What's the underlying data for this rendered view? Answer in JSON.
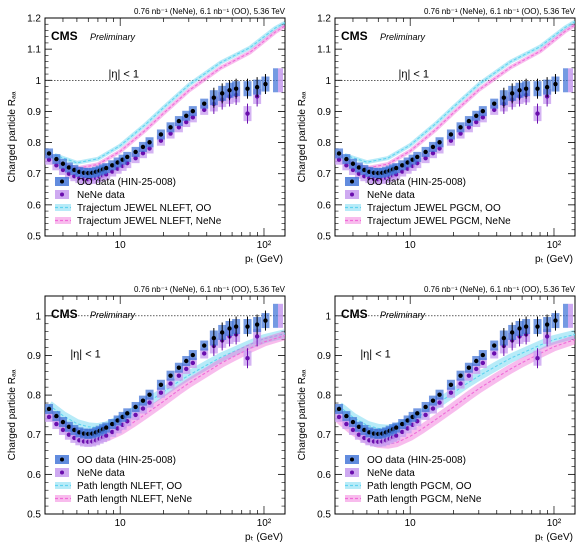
{
  "figure": {
    "panels": [
      {
        "lumi": "0.76 nb⁻¹ (NeNe), 6.1 nb⁻¹ (OO), 5.36 TeV",
        "cms": "CMS",
        "preliminary": "Preliminary",
        "eta": "|η| < 1",
        "xlabel": "pₜ (GeV)",
        "ylabel": "Charged particle Rₐₐ",
        "legend": [
          "OO data (HIN-25-008)",
          "NeNe data",
          "Trajectum JEWEL NLEFT, OO",
          "Trajectum JEWEL NLEFT, NeNe"
        ]
      },
      {
        "lumi": "0.76 nb⁻¹ (NeNe), 6.1 nb⁻¹ (OO), 5.36 TeV",
        "cms": "CMS",
        "preliminary": "Preliminary",
        "eta": "|η| < 1",
        "xlabel": "pₜ (GeV)",
        "ylabel": "Charged particle Rₐₐ",
        "legend": [
          "OO data (HIN-25-008)",
          "NeNe data",
          "Trajectum JEWEL PGCM, OO",
          "Trajectum JEWEL PGCM, NeNe"
        ]
      },
      {
        "lumi": "0.76 nb⁻¹ (NeNe), 6.1 nb⁻¹ (OO), 5.36 TeV",
        "cms": "CMS",
        "preliminary": "Preliminary",
        "eta": "|η| < 1",
        "xlabel": "pₜ (GeV)",
        "ylabel": "Charged particle Rₐₐ",
        "legend": [
          "OO data (HIN-25-008)",
          "NeNe data",
          "Path length NLEFT, OO",
          "Path length NLEFT, NeNe"
        ]
      },
      {
        "lumi": "0.76 nb⁻¹ (NeNe), 6.1 nb⁻¹ (OO), 5.36 TeV",
        "cms": "CMS",
        "preliminary": "Preliminary",
        "eta": "|η| < 1",
        "xlabel": "pₜ (GeV)",
        "ylabel": "Charged particle Rₐₐ",
        "legend": [
          "OO data (HIN-25-008)",
          "NeNe data",
          "Path length PGCM, OO",
          "Path length PGCM, NeNe"
        ]
      }
    ]
  },
  "colors": {
    "oo_data": "#000000",
    "oo_box": "#3b6fd6",
    "nene_data": "#6a0dad",
    "nene_box": "#c9a0f0",
    "model_oo": "#5fd3f0",
    "model_nene": "#f06ad8"
  },
  "chart_data": [
    {
      "type": "scatter",
      "title": "",
      "xlabel": "pₜ (GeV)",
      "ylabel": "Charged particle Rₐₐ",
      "xscale": "log",
      "xlim": [
        3,
        140
      ],
      "ylim": [
        0.5,
        1.2
      ],
      "x_ticks": [
        10,
        100
      ],
      "x_tick_labels": [
        "10",
        "10²"
      ],
      "y_ticks": [
        0.5,
        0.6,
        0.7,
        0.8,
        0.9,
        1,
        1.1,
        1.2
      ],
      "reference_line": 1.0,
      "legend_position": "bottom-left",
      "series": [
        {
          "name": "OO data (HIN-25-008)",
          "x": [
            3.2,
            3.6,
            4.0,
            4.4,
            4.8,
            5.2,
            5.6,
            6.0,
            6.4,
            6.8,
            7.2,
            7.6,
            8.0,
            8.8,
            9.6,
            10.4,
            11.2,
            12.8,
            14.4,
            16.0,
            19.2,
            22.4,
            25.6,
            28.8,
            32.0,
            38.4,
            44.8,
            51.2,
            57.6,
            64.0,
            76.8,
            89.6,
            102.4
          ],
          "y": [
            0.765,
            0.747,
            0.732,
            0.72,
            0.712,
            0.706,
            0.703,
            0.702,
            0.703,
            0.706,
            0.71,
            0.714,
            0.718,
            0.727,
            0.736,
            0.745,
            0.754,
            0.77,
            0.786,
            0.801,
            0.826,
            0.849,
            0.869,
            0.886,
            0.901,
            0.925,
            0.944,
            0.958,
            0.968,
            0.973,
            0.973,
            0.978,
            0.988
          ]
        },
        {
          "name": "NeNe data",
          "x": [
            3.2,
            3.6,
            4.0,
            4.4,
            4.8,
            5.2,
            5.6,
            6.0,
            6.4,
            6.8,
            7.2,
            7.6,
            8.0,
            8.8,
            9.6,
            10.4,
            11.2,
            12.8,
            14.4,
            16.0,
            19.2,
            22.4,
            25.6,
            28.8,
            32.0,
            38.4,
            44.8,
            51.2,
            57.6,
            64.0,
            76.8,
            89.6
          ],
          "y": [
            0.745,
            0.727,
            0.712,
            0.7,
            0.692,
            0.686,
            0.683,
            0.682,
            0.683,
            0.686,
            0.69,
            0.694,
            0.698,
            0.707,
            0.716,
            0.725,
            0.734,
            0.75,
            0.766,
            0.781,
            0.806,
            0.829,
            0.849,
            0.866,
            0.881,
            0.905,
            0.924,
            0.938,
            0.948,
            0.953,
            0.893,
            0.948
          ]
        },
        {
          "name": "Trajectum JEWEL NLEFT, OO",
          "x": [
            3.5,
            5,
            7,
            10,
            15,
            20,
            30,
            50,
            80,
            120,
            140
          ],
          "y": [
            0.76,
            0.735,
            0.748,
            0.79,
            0.858,
            0.912,
            0.985,
            1.057,
            1.105,
            1.168,
            1.185
          ]
        },
        {
          "name": "Trajectum JEWEL NLEFT, NeNe",
          "x": [
            3.5,
            5,
            7,
            10,
            15,
            20,
            30,
            50,
            80,
            120,
            140
          ],
          "y": [
            0.74,
            0.717,
            0.73,
            0.772,
            0.84,
            0.894,
            0.967,
            1.04,
            1.09,
            1.155,
            1.175
          ]
        }
      ]
    },
    {
      "type": "scatter",
      "title": "",
      "xlabel": "pₜ (GeV)",
      "ylabel": "Charged particle Rₐₐ",
      "xscale": "log",
      "xlim": [
        3,
        140
      ],
      "ylim": [
        0.5,
        1.2
      ],
      "x_ticks": [
        10,
        100
      ],
      "x_tick_labels": [
        "10",
        "10²"
      ],
      "y_ticks": [
        0.5,
        0.6,
        0.7,
        0.8,
        0.9,
        1,
        1.1,
        1.2
      ],
      "reference_line": 1.0,
      "legend_position": "bottom-left",
      "series": [
        {
          "name": "OO data (HIN-25-008)",
          "x": [
            3.2,
            3.6,
            4.0,
            4.4,
            4.8,
            5.2,
            5.6,
            6.0,
            6.4,
            6.8,
            7.2,
            7.6,
            8.0,
            8.8,
            9.6,
            10.4,
            11.2,
            12.8,
            14.4,
            16.0,
            19.2,
            22.4,
            25.6,
            28.8,
            32.0,
            38.4,
            44.8,
            51.2,
            57.6,
            64.0,
            76.8,
            89.6,
            102.4
          ],
          "y": [
            0.765,
            0.747,
            0.732,
            0.72,
            0.712,
            0.706,
            0.703,
            0.702,
            0.703,
            0.706,
            0.71,
            0.714,
            0.718,
            0.727,
            0.736,
            0.745,
            0.754,
            0.77,
            0.786,
            0.801,
            0.826,
            0.849,
            0.869,
            0.886,
            0.901,
            0.925,
            0.944,
            0.958,
            0.968,
            0.973,
            0.973,
            0.978,
            0.988
          ]
        },
        {
          "name": "NeNe data",
          "x": [
            3.2,
            3.6,
            4.0,
            4.4,
            4.8,
            5.2,
            5.6,
            6.0,
            6.4,
            6.8,
            7.2,
            7.6,
            8.0,
            8.8,
            9.6,
            10.4,
            11.2,
            12.8,
            14.4,
            16.0,
            19.2,
            22.4,
            25.6,
            28.8,
            32.0,
            38.4,
            44.8,
            51.2,
            57.6,
            64.0,
            76.8,
            89.6
          ],
          "y": [
            0.745,
            0.727,
            0.712,
            0.7,
            0.692,
            0.686,
            0.683,
            0.682,
            0.683,
            0.686,
            0.69,
            0.694,
            0.698,
            0.707,
            0.716,
            0.725,
            0.734,
            0.75,
            0.766,
            0.781,
            0.806,
            0.829,
            0.849,
            0.866,
            0.881,
            0.905,
            0.924,
            0.938,
            0.948,
            0.953,
            0.893,
            0.948
          ]
        },
        {
          "name": "Trajectum JEWEL PGCM, OO",
          "x": [
            3.5,
            5,
            7,
            10,
            15,
            20,
            30,
            50,
            80,
            120,
            140
          ],
          "y": [
            0.76,
            0.737,
            0.75,
            0.792,
            0.86,
            0.914,
            0.987,
            1.06,
            1.108,
            1.17,
            1.188
          ]
        },
        {
          "name": "Trajectum JEWEL PGCM, NeNe",
          "x": [
            3.5,
            5,
            7,
            10,
            15,
            20,
            30,
            50,
            80,
            120,
            140
          ],
          "y": [
            0.742,
            0.718,
            0.731,
            0.773,
            0.841,
            0.896,
            0.969,
            1.042,
            1.093,
            1.158,
            1.178
          ]
        }
      ]
    },
    {
      "type": "scatter",
      "title": "",
      "xlabel": "pₜ (GeV)",
      "ylabel": "Charged particle Rₐₐ",
      "xscale": "log",
      "xlim": [
        3,
        140
      ],
      "ylim": [
        0.5,
        1.05
      ],
      "x_ticks": [
        10,
        100
      ],
      "x_tick_labels": [
        "10",
        "10²"
      ],
      "y_ticks": [
        0.5,
        0.6,
        0.7,
        0.8,
        0.9,
        1
      ],
      "reference_line": 1.0,
      "legend_position": "bottom-left",
      "series": [
        {
          "name": "OO data (HIN-25-008)",
          "x": [
            3.2,
            3.6,
            4.0,
            4.4,
            4.8,
            5.2,
            5.6,
            6.0,
            6.4,
            6.8,
            7.2,
            7.6,
            8.0,
            8.8,
            9.6,
            10.4,
            11.2,
            12.8,
            14.4,
            16.0,
            19.2,
            22.4,
            25.6,
            28.8,
            32.0,
            38.4,
            44.8,
            51.2,
            57.6,
            64.0,
            76.8,
            89.6,
            102.4
          ],
          "y": [
            0.765,
            0.747,
            0.732,
            0.72,
            0.712,
            0.706,
            0.703,
            0.702,
            0.703,
            0.706,
            0.71,
            0.714,
            0.718,
            0.727,
            0.736,
            0.745,
            0.754,
            0.77,
            0.786,
            0.801,
            0.826,
            0.849,
            0.869,
            0.886,
            0.901,
            0.925,
            0.944,
            0.958,
            0.968,
            0.973,
            0.973,
            0.978,
            0.988
          ]
        },
        {
          "name": "NeNe data",
          "x": [
            3.2,
            3.6,
            4.0,
            4.4,
            4.8,
            5.2,
            5.6,
            6.0,
            6.4,
            6.8,
            7.2,
            7.6,
            8.0,
            8.8,
            9.6,
            10.4,
            11.2,
            12.8,
            14.4,
            16.0,
            19.2,
            22.4,
            25.6,
            28.8,
            32.0,
            38.4,
            44.8,
            51.2,
            57.6,
            64.0,
            76.8,
            89.6
          ],
          "y": [
            0.745,
            0.727,
            0.712,
            0.7,
            0.692,
            0.686,
            0.683,
            0.682,
            0.683,
            0.686,
            0.69,
            0.694,
            0.698,
            0.707,
            0.716,
            0.725,
            0.734,
            0.75,
            0.766,
            0.781,
            0.806,
            0.829,
            0.849,
            0.866,
            0.881,
            0.905,
            0.924,
            0.938,
            0.948,
            0.953,
            0.893,
            0.948
          ]
        },
        {
          "name": "Path length NLEFT, OO",
          "x": [
            3.2,
            4,
            5,
            6,
            7,
            8,
            10,
            12,
            15,
            20,
            25,
            30,
            40,
            50,
            60,
            80,
            100,
            140
          ],
          "y": [
            0.775,
            0.748,
            0.728,
            0.72,
            0.718,
            0.722,
            0.738,
            0.755,
            0.778,
            0.808,
            0.832,
            0.85,
            0.876,
            0.895,
            0.908,
            0.928,
            0.942,
            0.955
          ]
        },
        {
          "name": "Path length NLEFT, NeNe",
          "x": [
            3.2,
            4,
            5,
            6,
            7,
            8,
            10,
            12,
            15,
            20,
            25,
            30,
            40,
            50,
            60,
            80,
            100,
            140
          ],
          "y": [
            0.755,
            0.725,
            0.703,
            0.692,
            0.69,
            0.694,
            0.71,
            0.728,
            0.752,
            0.784,
            0.81,
            0.83,
            0.858,
            0.88,
            0.895,
            0.918,
            0.934,
            0.95
          ]
        }
      ]
    },
    {
      "type": "scatter",
      "title": "",
      "xlabel": "pₜ (GeV)",
      "ylabel": "Charged particle Rₐₐ",
      "xscale": "log",
      "xlim": [
        3,
        140
      ],
      "ylim": [
        0.5,
        1.05
      ],
      "x_ticks": [
        10,
        100
      ],
      "x_tick_labels": [
        "10",
        "10²"
      ],
      "y_ticks": [
        0.5,
        0.6,
        0.7,
        0.8,
        0.9,
        1
      ],
      "reference_line": 1.0,
      "legend_position": "bottom-left",
      "series": [
        {
          "name": "OO data (HIN-25-008)",
          "x": [
            3.2,
            3.6,
            4.0,
            4.4,
            4.8,
            5.2,
            5.6,
            6.0,
            6.4,
            6.8,
            7.2,
            7.6,
            8.0,
            8.8,
            9.6,
            10.4,
            11.2,
            12.8,
            14.4,
            16.0,
            19.2,
            22.4,
            25.6,
            28.8,
            32.0,
            38.4,
            44.8,
            51.2,
            57.6,
            64.0,
            76.8,
            89.6,
            102.4
          ],
          "y": [
            0.765,
            0.747,
            0.732,
            0.72,
            0.712,
            0.706,
            0.703,
            0.702,
            0.703,
            0.706,
            0.71,
            0.714,
            0.718,
            0.727,
            0.736,
            0.745,
            0.754,
            0.77,
            0.786,
            0.801,
            0.826,
            0.849,
            0.869,
            0.886,
            0.901,
            0.925,
            0.944,
            0.958,
            0.968,
            0.973,
            0.973,
            0.978,
            0.988
          ]
        },
        {
          "name": "NeNe data",
          "x": [
            3.2,
            3.6,
            4.0,
            4.4,
            4.8,
            5.2,
            5.6,
            6.0,
            6.4,
            6.8,
            7.2,
            7.6,
            8.0,
            8.8,
            9.6,
            10.4,
            11.2,
            12.8,
            14.4,
            16.0,
            19.2,
            22.4,
            25.6,
            28.8,
            32.0,
            38.4,
            44.8,
            51.2,
            57.6,
            64.0,
            76.8,
            89.6
          ],
          "y": [
            0.745,
            0.727,
            0.712,
            0.7,
            0.692,
            0.686,
            0.683,
            0.682,
            0.683,
            0.686,
            0.69,
            0.694,
            0.698,
            0.707,
            0.716,
            0.725,
            0.734,
            0.75,
            0.766,
            0.781,
            0.806,
            0.829,
            0.849,
            0.866,
            0.881,
            0.905,
            0.924,
            0.938,
            0.948,
            0.953,
            0.893,
            0.948
          ]
        },
        {
          "name": "Path length PGCM, OO",
          "x": [
            3.2,
            4,
            5,
            6,
            7,
            8,
            10,
            12,
            15,
            20,
            25,
            30,
            40,
            50,
            60,
            80,
            100,
            140
          ],
          "y": [
            0.772,
            0.744,
            0.724,
            0.716,
            0.714,
            0.718,
            0.734,
            0.751,
            0.775,
            0.806,
            0.83,
            0.848,
            0.874,
            0.893,
            0.906,
            0.926,
            0.94,
            0.953
          ]
        },
        {
          "name": "Path length PGCM, NeNe",
          "x": [
            3.2,
            4,
            5,
            6,
            7,
            8,
            10,
            12,
            15,
            20,
            25,
            30,
            40,
            50,
            60,
            80,
            100,
            140
          ],
          "y": [
            0.74,
            0.71,
            0.688,
            0.678,
            0.676,
            0.68,
            0.696,
            0.714,
            0.738,
            0.77,
            0.796,
            0.816,
            0.845,
            0.866,
            0.882,
            0.905,
            0.922,
            0.94
          ]
        }
      ]
    }
  ]
}
